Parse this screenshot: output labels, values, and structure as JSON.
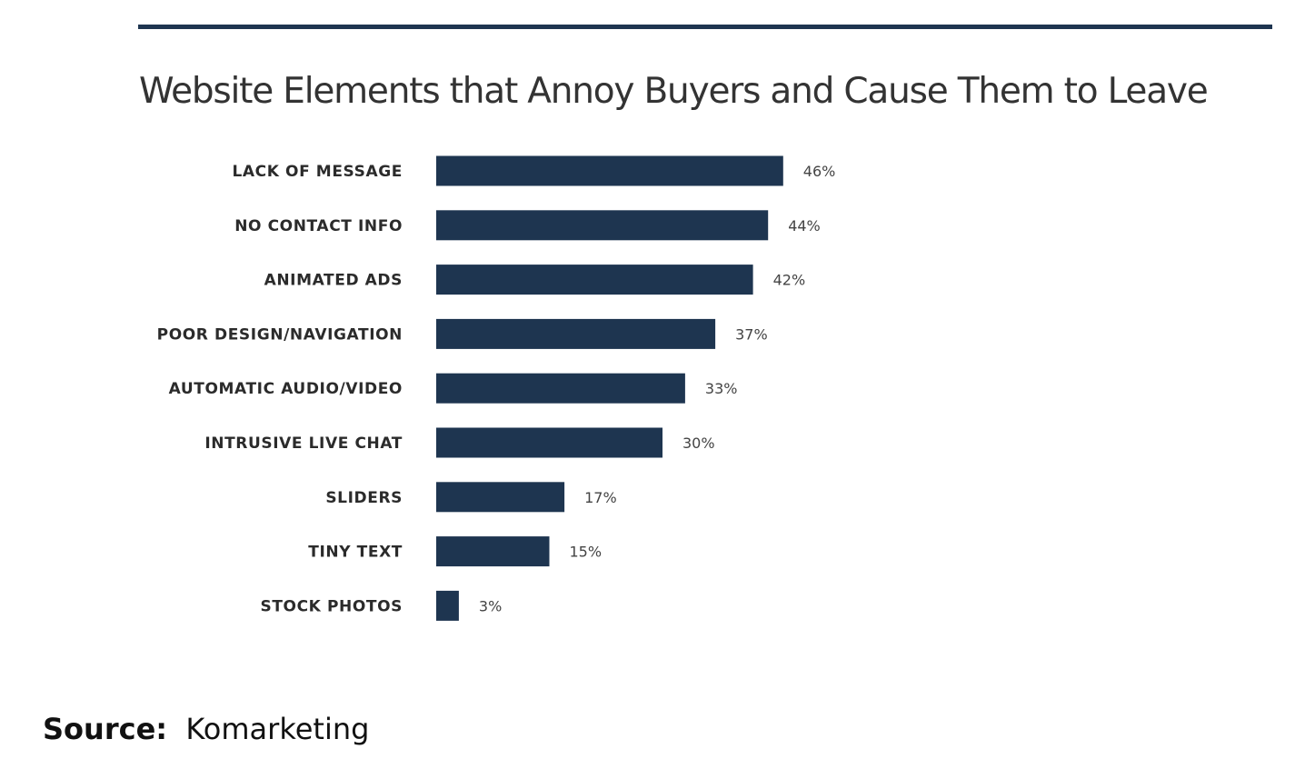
{
  "colors": {
    "bar": "#1e3550",
    "rule": "#1e3550",
    "title": "#333333",
    "category_text": "#2b2b2b",
    "value_text": "#444444"
  },
  "chart_data": {
    "type": "bar",
    "orientation": "horizontal",
    "title": "Website Elements that Annoy Buyers and Cause Them to Leave",
    "xlabel": "",
    "ylabel": "",
    "xlim": [
      0,
      100
    ],
    "grid": false,
    "categories": [
      "LACK OF MESSAGE",
      "NO CONTACT INFO",
      "ANIMATED ADS",
      "POOR DESIGN/NAVIGATION",
      "AUTOMATIC AUDIO/VIDEO",
      "INTRUSIVE LIVE CHAT",
      "SLIDERS",
      "TINY TEXT",
      "STOCK PHOTOS"
    ],
    "values": [
      46,
      44,
      42,
      37,
      33,
      30,
      17,
      15,
      3
    ],
    "value_labels": [
      "46%",
      "44%",
      "42%",
      "37%",
      "33%",
      "30%",
      "17%",
      "15%",
      "3%"
    ]
  },
  "source": {
    "label": "Source:",
    "value": "Komarketing"
  }
}
